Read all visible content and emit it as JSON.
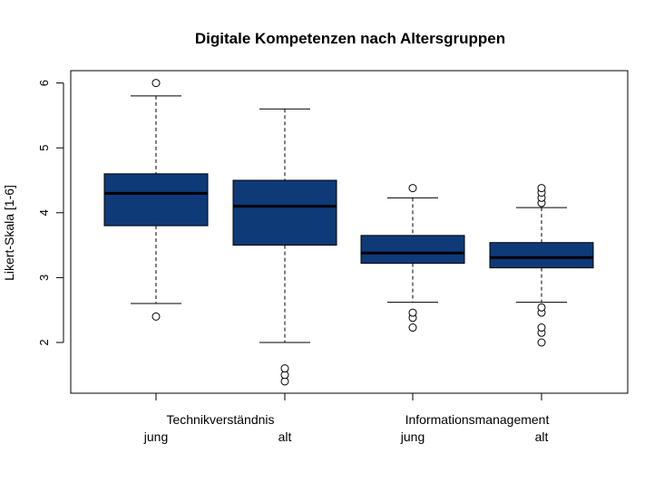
{
  "chart_data": {
    "type": "box",
    "title": "Digitale Kompetenzen nach Altersgruppen",
    "ylabel": "Likert-Skala [1-6]",
    "xlabel": "",
    "ylim": [
      1.2,
      6.2
    ],
    "yticks": [
      2,
      3,
      4,
      5,
      6
    ],
    "grid": false,
    "box_color": "#0e3a78",
    "group_labels": [
      "Technikverständnis",
      "Informationsmanagement"
    ],
    "categories": [
      "jung",
      "alt",
      "jung",
      "alt"
    ],
    "boxes": [
      {
        "group": 0,
        "label": "jung",
        "whisker_low": 2.6,
        "q1": 3.8,
        "median": 4.3,
        "q3": 4.6,
        "whisker_high": 5.8,
        "outliers": [
          2.4,
          6.0
        ]
      },
      {
        "group": 0,
        "label": "alt",
        "whisker_low": 2.0,
        "q1": 3.5,
        "median": 4.1,
        "q3": 4.5,
        "whisker_high": 5.6,
        "outliers": [
          1.4,
          1.5,
          1.6
        ]
      },
      {
        "group": 1,
        "label": "jung",
        "whisker_low": 2.62,
        "q1": 3.22,
        "median": 3.38,
        "q3": 3.65,
        "whisker_high": 4.23,
        "outliers": [
          2.23,
          2.38,
          2.46,
          4.38
        ]
      },
      {
        "group": 1,
        "label": "alt",
        "whisker_low": 2.62,
        "q1": 3.15,
        "median": 3.31,
        "q3": 3.54,
        "whisker_high": 4.08,
        "outliers": [
          2.0,
          2.15,
          2.23,
          2.46,
          2.54,
          4.15,
          4.23,
          4.31,
          4.38
        ]
      }
    ]
  }
}
